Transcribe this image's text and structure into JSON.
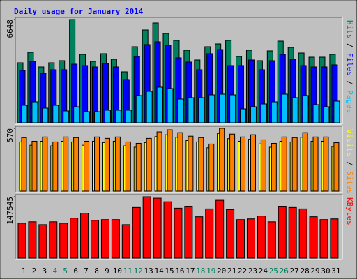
{
  "title": "Daily usage for January 2014",
  "chart_data": [
    {
      "type": "bar",
      "ylim": [
        0,
        6648
      ],
      "yticks": [
        6648
      ],
      "legend_separator": "/",
      "series": [
        {
          "name": "Hits",
          "color": "#00805c",
          "values": [
            3863,
            4536,
            3593,
            3863,
            3998,
            6648,
            4402,
            3953,
            4447,
            4088,
            3279,
            4896,
            5974,
            6424,
            5750,
            5300,
            4671,
            4043,
            4896,
            5076,
            5300,
            4267,
            4671,
            3998,
            4627,
            5256,
            4851,
            4492,
            4222,
            4222,
            4402
          ]
        },
        {
          "name": "Files",
          "color": "#0000ff",
          "values": [
            3369,
            3953,
            3189,
            3414,
            3414,
            3773,
            3683,
            3593,
            3818,
            3593,
            2785,
            4267,
            5031,
            5210,
            4986,
            4177,
            3908,
            3414,
            4447,
            4716,
            3683,
            3683,
            4043,
            3414,
            3998,
            4402,
            4088,
            3683,
            3593,
            3593,
            3728
          ]
        },
        {
          "name": "Pages",
          "color": "#00c0ff",
          "values": [
            1123,
            1348,
            943,
            1123,
            764,
            1033,
            719,
            719,
            809,
            809,
            809,
            1752,
            2021,
            2291,
            2201,
            1527,
            1617,
            1617,
            1797,
            1842,
            1797,
            898,
            1033,
            1213,
            1348,
            1842,
            1617,
            1752,
            1168,
            1033,
            1393
          ]
        }
      ]
    },
    {
      "type": "bar",
      "ylim": [
        0,
        570
      ],
      "yticks": [
        570
      ],
      "legend_separator": "/",
      "series": [
        {
          "name": "Visits",
          "color": "#ffff00",
          "values": [
            447,
            417,
            453,
            411,
            453,
            447,
            417,
            453,
            441,
            453,
            411,
            399,
            441,
            495,
            512,
            489,
            459,
            447,
            394,
            524,
            477,
            453,
            471,
            429,
            399,
            453,
            447,
            489,
            453,
            453,
            405
          ]
        },
        {
          "name": "Sites",
          "color": "#ff8000",
          "values": [
            486,
            453,
            492,
            447,
            492,
            486,
            453,
            492,
            479,
            492,
            447,
            434,
            479,
            538,
            557,
            531,
            499,
            486,
            428,
            570,
            518,
            492,
            512,
            466,
            434,
            492,
            486,
            531,
            492,
            492,
            440
          ]
        }
      ]
    },
    {
      "type": "bar",
      "ylim": [
        0,
        147545
      ],
      "yticks": [
        147545
      ],
      "categories": [
        "1",
        "2",
        "3",
        "4",
        "5",
        "6",
        "7",
        "8",
        "9",
        "10",
        "11",
        "12",
        "13",
        "14",
        "15",
        "16",
        "17",
        "18",
        "19",
        "20",
        "21",
        "22",
        "23",
        "24",
        "25",
        "26",
        "27",
        "28",
        "29",
        "30",
        "31"
      ],
      "category_colors": [
        "#000000",
        "#000000",
        "#000000",
        "#00805c",
        "#00805c",
        "#000000",
        "#000000",
        "#000000",
        "#000000",
        "#000000",
        "#00805c",
        "#00805c",
        "#000000",
        "#000000",
        "#000000",
        "#000000",
        "#000000",
        "#00805c",
        "#00805c",
        "#000000",
        "#000000",
        "#000000",
        "#000000",
        "#000000",
        "#00805c",
        "#00805c",
        "#000000",
        "#000000",
        "#000000",
        "#000000",
        "#000000"
      ],
      "series": [
        {
          "name": "KBytes",
          "color": "#ff0000",
          "values": [
            84080,
            87500,
            80640,
            87500,
            84080,
            96090,
            108100,
            90930,
            92650,
            92650,
            80640,
            121800,
            147545,
            144100,
            135500,
            120100,
            123500,
            99500,
            118400,
            139000,
            116700,
            92650,
            94360,
            101200,
            87500,
            123500,
            121800,
            118400,
            99500,
            92650,
            94360
          ]
        }
      ]
    }
  ]
}
